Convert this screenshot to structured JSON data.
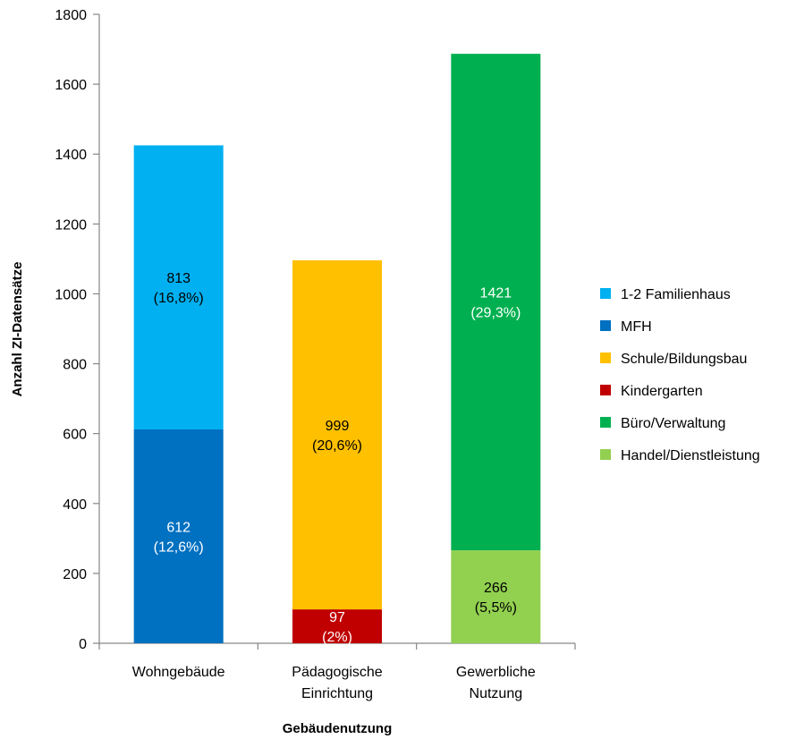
{
  "chart_data": {
    "type": "bar",
    "stacked": true,
    "xlabel": "Gebäudenutzung",
    "ylabel": "Anzahl ZI-Datensätze",
    "ylim": [
      0,
      1800
    ],
    "yticks": [
      0,
      200,
      400,
      600,
      800,
      1000,
      1200,
      1400,
      1600,
      1800
    ],
    "grid": false,
    "legend_position": "right",
    "categories": [
      {
        "label_lines": [
          "Wohngebäude"
        ]
      },
      {
        "label_lines": [
          "Pädagogische",
          "Einrichtung"
        ]
      },
      {
        "label_lines": [
          "Gewerbliche",
          "Nutzung"
        ]
      }
    ],
    "series": [
      {
        "name": "1-2 Familienhaus",
        "color": "#00B0F0",
        "category": 0,
        "value": 813,
        "label_lines": [
          "813",
          "(16,8%)"
        ],
        "label_color": "#000000"
      },
      {
        "name": "MFH",
        "color": "#0070C0",
        "category": 0,
        "value": 612,
        "label_lines": [
          "612",
          "(12,6%)"
        ],
        "label_color": "#ffffff"
      },
      {
        "name": "Schule/Bildungsbau",
        "color": "#FFC000",
        "category": 1,
        "value": 999,
        "label_lines": [
          "999",
          "(20,6%)"
        ],
        "label_color": "#000000"
      },
      {
        "name": "Kindergarten",
        "color": "#C00000",
        "category": 1,
        "value": 97,
        "label_lines": [
          "97",
          "(2%)"
        ],
        "label_color": "#ffffff"
      },
      {
        "name": "Büro/Verwaltung",
        "color": "#00B050",
        "category": 2,
        "value": 1421,
        "label_lines": [
          "1421",
          "(29,3%)"
        ],
        "label_color": "#ffffff"
      },
      {
        "name": "Handel/Dienstleistung",
        "color": "#92D050",
        "category": 2,
        "value": 266,
        "label_lines": [
          "266",
          "(5,5%)"
        ],
        "label_color": "#000000"
      }
    ],
    "stack_order": [
      [
        1,
        0
      ],
      [
        3,
        2
      ],
      [
        5,
        4
      ]
    ]
  }
}
